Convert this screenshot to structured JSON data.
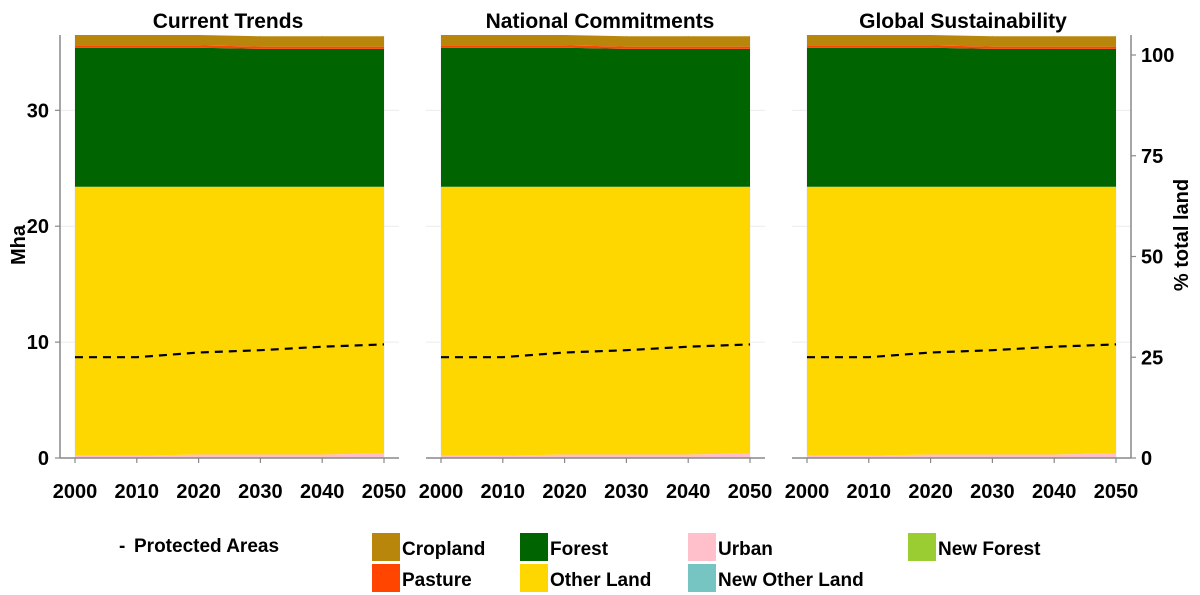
{
  "chart_data": {
    "type": "area",
    "stacked": true,
    "panels": [
      {
        "title": "Current Trends"
      },
      {
        "title": "National Commitments"
      },
      {
        "title": "Global Sustainability"
      }
    ],
    "x": [
      2000,
      2010,
      2020,
      2030,
      2040,
      2050
    ],
    "x_ticks": [
      "2000",
      "2010",
      "2020",
      "2030",
      "2040",
      "2050"
    ],
    "ylabel": "Mha",
    "ylim": [
      0,
      36.5
    ],
    "y_ticks": [
      "0",
      "10",
      "20",
      "30"
    ],
    "secondary_ylabel": "% total land",
    "secondary_ylim": [
      0,
      100
    ],
    "secondary_y_ticks": [
      "0",
      "25",
      "50",
      "75",
      "100"
    ],
    "grid": true,
    "legend_position": "bottom",
    "series": [
      {
        "name": "Urban",
        "color": "#FFC0CB",
        "values": [
          0.2,
          0.2,
          0.3,
          0.3,
          0.3,
          0.4
        ]
      },
      {
        "name": "New Other Land",
        "color": "#77C5C3",
        "values": [
          0,
          0,
          0,
          0,
          0,
          0
        ]
      },
      {
        "name": "Other Land",
        "color": "#FFD700",
        "values": [
          23.2,
          23.2,
          23.1,
          23.1,
          23.1,
          23.0
        ]
      },
      {
        "name": "New Forest",
        "color": "#9ACD32",
        "values": [
          0,
          0,
          0,
          0,
          0,
          0
        ]
      },
      {
        "name": "Forest",
        "color": "#006400",
        "values": [
          12.0,
          12.0,
          12.0,
          11.9,
          11.9,
          11.9
        ]
      },
      {
        "name": "Pasture",
        "color": "#FF4500",
        "values": [
          0.2,
          0.2,
          0.2,
          0.2,
          0.2,
          0.2
        ]
      },
      {
        "name": "Cropland",
        "color": "#B8860B",
        "values": [
          0.9,
          0.9,
          0.9,
          0.9,
          0.9,
          0.9
        ]
      }
    ],
    "protected_areas": {
      "name": "Protected Areas",
      "values": [
        8.7,
        8.7,
        9.1,
        9.3,
        9.6,
        9.8
      ]
    },
    "legend_items": [
      "Cropland",
      "Forest",
      "Urban",
      "New Forest",
      "Pasture",
      "Other Land",
      "New Other Land"
    ]
  },
  "legend": {
    "protected_label": "Protected Areas",
    "protected_marker": "-"
  }
}
